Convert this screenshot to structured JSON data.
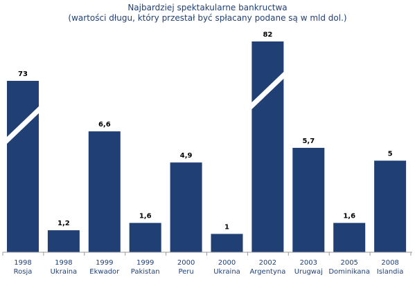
{
  "chart_data": {
    "type": "bar",
    "title": "Najbardziej spektakularne bankructwa",
    "subtitle": "(wartości długu, który przestał być spłacany podane są w mld dol.)",
    "categories": [
      {
        "year": "1998",
        "country": "Rosja"
      },
      {
        "year": "1998",
        "country": "Ukraina"
      },
      {
        "year": "1999",
        "country": "Ekwador"
      },
      {
        "year": "1999",
        "country": "Pakistan"
      },
      {
        "year": "2000",
        "country": "Peru"
      },
      {
        "year": "2000",
        "country": "Ukraina"
      },
      {
        "year": "2002",
        "country": "Argentyna"
      },
      {
        "year": "2003",
        "country": "Urugwaj"
      },
      {
        "year": "2005",
        "country": "Dominikana"
      },
      {
        "year": "2008",
        "country": "Islandia"
      }
    ],
    "values": [
      73,
      1.2,
      6.6,
      1.6,
      4.9,
      1,
      82,
      5.7,
      1.6,
      5
    ],
    "value_labels": [
      "73",
      "1,2",
      "6,6",
      "1,6",
      "4,9",
      "1",
      "82",
      "5,7",
      "1,6",
      "5"
    ],
    "broken_axis_bars": [
      0,
      6
    ],
    "bar_color": "#1f3f75",
    "title_color": "#1f3f75",
    "ylim": [
      0,
      8
    ],
    "grid": false,
    "xlabel": "",
    "ylabel": ""
  }
}
